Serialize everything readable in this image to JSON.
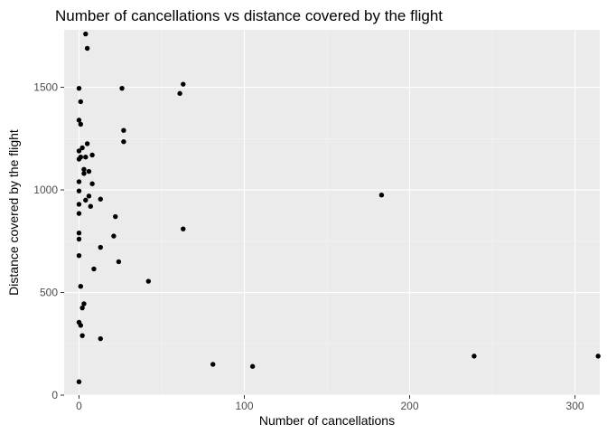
{
  "chart_data": {
    "type": "scatter",
    "title": "Number of cancellations vs distance covered by the flight",
    "xlabel": "Number of cancellations",
    "ylabel": "Distance covered by the flight",
    "xlim": [
      -9,
      315
    ],
    "ylim": [
      0,
      1780
    ],
    "xticks": [
      0,
      100,
      200,
      300
    ],
    "yticks": [
      0,
      500,
      1000,
      1500
    ],
    "grid": true,
    "colors": {
      "panel_background": "#ebebeb",
      "grid_major": "#ffffff",
      "point": "#000000",
      "tick_text": "#4d4d4d"
    },
    "points": [
      {
        "x": 4,
        "y": 1760
      },
      {
        "x": 5,
        "y": 1690
      },
      {
        "x": 0,
        "y": 1495
      },
      {
        "x": 26,
        "y": 1495
      },
      {
        "x": 63,
        "y": 1515
      },
      {
        "x": 61,
        "y": 1470
      },
      {
        "x": 1,
        "y": 1430
      },
      {
        "x": 0,
        "y": 1340
      },
      {
        "x": 1,
        "y": 1320
      },
      {
        "x": 27,
        "y": 1290
      },
      {
        "x": 27,
        "y": 1235
      },
      {
        "x": 5,
        "y": 1225
      },
      {
        "x": 2,
        "y": 1205
      },
      {
        "x": 0,
        "y": 1190
      },
      {
        "x": 8,
        "y": 1170
      },
      {
        "x": 1,
        "y": 1160
      },
      {
        "x": 0,
        "y": 1150
      },
      {
        "x": 4,
        "y": 1160
      },
      {
        "x": 3,
        "y": 1100
      },
      {
        "x": 6,
        "y": 1090
      },
      {
        "x": 3,
        "y": 1080
      },
      {
        "x": 0,
        "y": 1040
      },
      {
        "x": 8,
        "y": 1030
      },
      {
        "x": 0,
        "y": 995
      },
      {
        "x": 183,
        "y": 975
      },
      {
        "x": 6,
        "y": 970
      },
      {
        "x": 13,
        "y": 955
      },
      {
        "x": 4,
        "y": 950
      },
      {
        "x": 0,
        "y": 930
      },
      {
        "x": 7,
        "y": 920
      },
      {
        "x": 0,
        "y": 885
      },
      {
        "x": 22,
        "y": 870
      },
      {
        "x": 63,
        "y": 810
      },
      {
        "x": 0,
        "y": 790
      },
      {
        "x": 21,
        "y": 775
      },
      {
        "x": 0,
        "y": 760
      },
      {
        "x": 13,
        "y": 720
      },
      {
        "x": 0,
        "y": 680
      },
      {
        "x": 24,
        "y": 650
      },
      {
        "x": 9,
        "y": 615
      },
      {
        "x": 42,
        "y": 555
      },
      {
        "x": 1,
        "y": 530
      },
      {
        "x": 3,
        "y": 445
      },
      {
        "x": 2,
        "y": 425
      },
      {
        "x": 0,
        "y": 355
      },
      {
        "x": 1,
        "y": 340
      },
      {
        "x": 2,
        "y": 290
      },
      {
        "x": 13,
        "y": 275
      },
      {
        "x": 239,
        "y": 190
      },
      {
        "x": 314,
        "y": 190
      },
      {
        "x": 81,
        "y": 150
      },
      {
        "x": 105,
        "y": 140
      },
      {
        "x": 0,
        "y": 65
      }
    ]
  }
}
